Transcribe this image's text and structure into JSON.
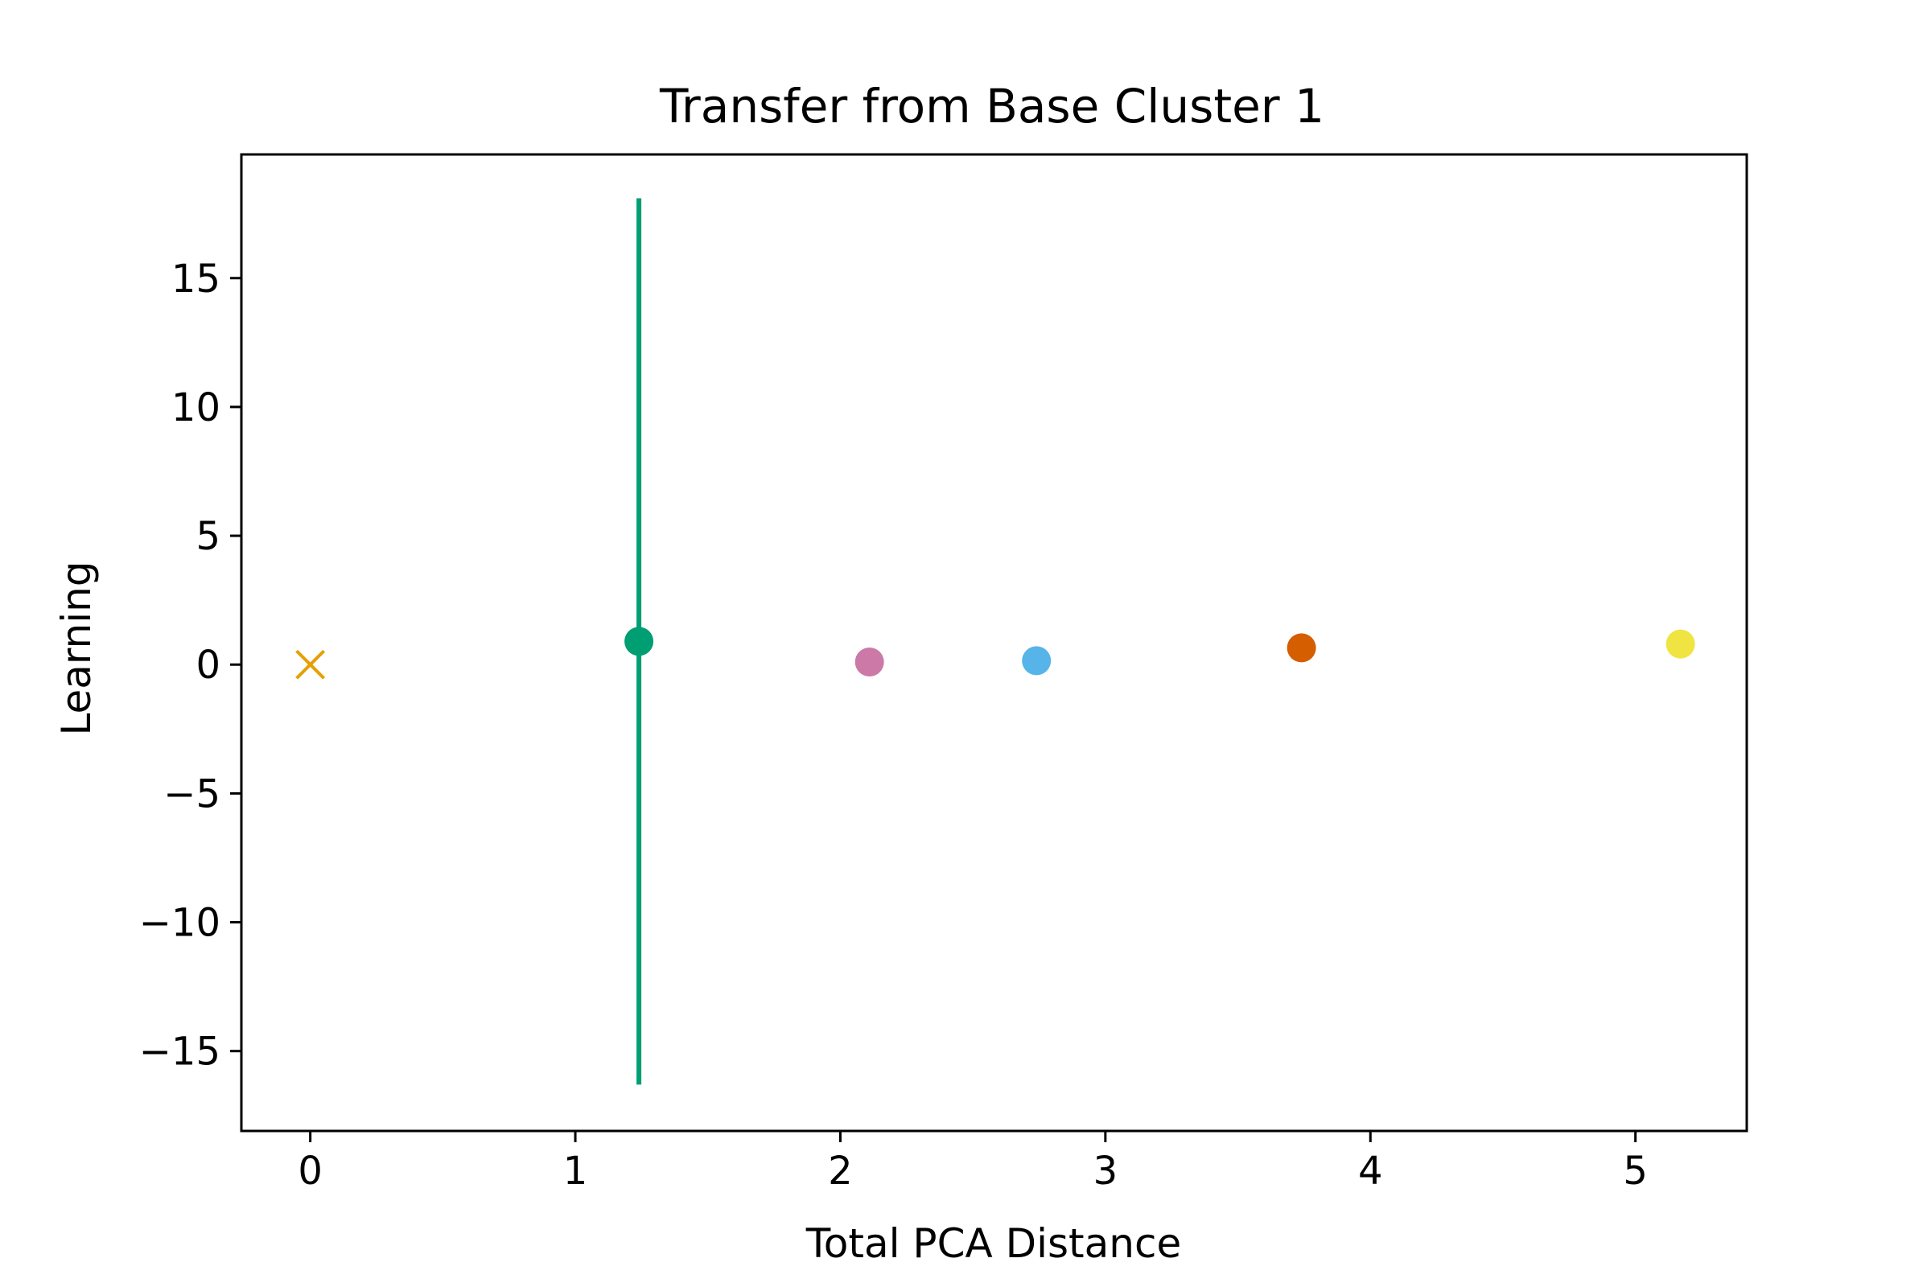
{
  "chart_data": {
    "type": "scatter",
    "title": "Transfer from Base Cluster 1",
    "xlabel": "Total PCA Distance",
    "ylabel": "Learning",
    "xlim": [
      -0.26,
      5.42
    ],
    "ylim": [
      -18.1,
      19.8
    ],
    "x_ticks": [
      0,
      1,
      2,
      3,
      4,
      5
    ],
    "x_tick_labels": [
      "0",
      "1",
      "2",
      "3",
      "4",
      "5"
    ],
    "y_ticks": [
      -15,
      -10,
      -5,
      0,
      5,
      10,
      15
    ],
    "y_tick_labels": [
      "−15",
      "−10",
      "−5",
      "0",
      "5",
      "10",
      "15"
    ],
    "grid": false,
    "legend": "none",
    "points": [
      {
        "x": 0.0,
        "y": 0.0,
        "marker": "x",
        "color": "#E69F00"
      },
      {
        "x": 1.24,
        "y": 0.9,
        "marker": "o",
        "color": "#009E73",
        "yerr_low": -16.3,
        "yerr_high": 18.1
      },
      {
        "x": 2.11,
        "y": 0.1,
        "marker": "o",
        "color": "#CC79A7"
      },
      {
        "x": 2.74,
        "y": 0.15,
        "marker": "o",
        "color": "#56B4E9"
      },
      {
        "x": 3.74,
        "y": 0.65,
        "marker": "o",
        "color": "#D55E00"
      },
      {
        "x": 5.17,
        "y": 0.8,
        "marker": "o",
        "color": "#F0E442"
      }
    ]
  }
}
